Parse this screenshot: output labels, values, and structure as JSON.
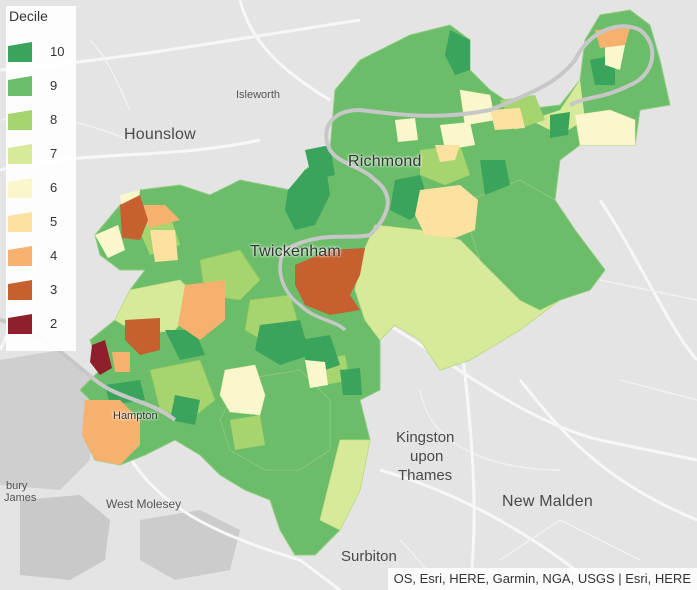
{
  "legend": {
    "title": "Decile",
    "items": [
      {
        "label": "10",
        "color": "#3aa35c"
      },
      {
        "label": "9",
        "color": "#6cbd6a"
      },
      {
        "label": "8",
        "color": "#a6d46f"
      },
      {
        "label": "7",
        "color": "#d7ea99"
      },
      {
        "label": "6",
        "color": "#fbf7cd"
      },
      {
        "label": "5",
        "color": "#fde1a1"
      },
      {
        "label": "4",
        "color": "#f7b16f"
      },
      {
        "label": "3",
        "color": "#c6602e"
      },
      {
        "label": "2",
        "color": "#8f1f2b"
      }
    ]
  },
  "places": {
    "isleworth": "Isleworth",
    "hounslow": "Hounslow",
    "richmond": "Richmond",
    "twickenham": "Twickenham",
    "hampton": "Hampton",
    "kingston1": "Kingston",
    "kingston2": "upon",
    "kingston3": "Thames",
    "new_malden": "New Malden",
    "west_molesey": "West Molesey",
    "bury": "bury",
    "james": "James",
    "surbiton": "Surbiton"
  },
  "attribution": "OS, Esri, HERE, Garmin, NGA, USGS | Esri, HERE"
}
